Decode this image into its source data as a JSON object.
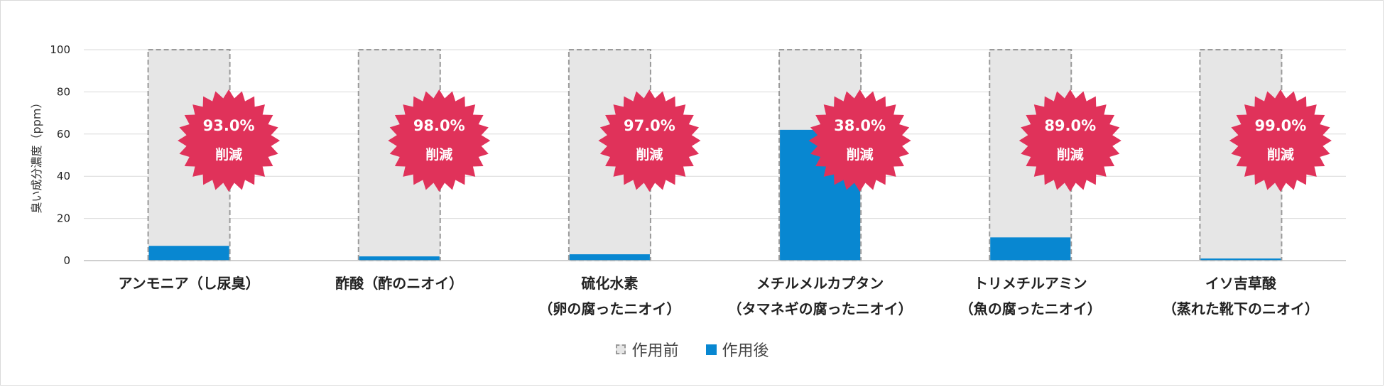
{
  "chart_data": {
    "type": "bar",
    "ylabel": "臭い成分濃度（ppm）",
    "ylim": [
      0,
      100
    ],
    "yticks": [
      0,
      20,
      40,
      60,
      80,
      100
    ],
    "grid": true,
    "legend_position": "bottom",
    "categories": [
      {
        "line1": "アンモニア（し尿臭）",
        "line2": ""
      },
      {
        "line1": "酢酸（酢のニオイ）",
        "line2": ""
      },
      {
        "line1": "硫化水素",
        "line2": "（卵の腐ったニオイ）"
      },
      {
        "line1": "メチルメルカプタン",
        "line2": "（タマネギの腐ったニオイ）"
      },
      {
        "line1": "トリメチルアミン",
        "line2": "（魚の腐ったニオイ）"
      },
      {
        "line1": "イソ吉草酸",
        "line2": "（蒸れた靴下のニオイ）"
      }
    ],
    "series": [
      {
        "name": "作用前",
        "values": [
          100,
          100,
          100,
          100,
          100,
          100
        ],
        "color": "#e6e6e6",
        "border": "#9a9a9a"
      },
      {
        "name": "作用後",
        "values": [
          7,
          2,
          3,
          62,
          11,
          1
        ],
        "color": "#0887d1"
      }
    ],
    "annotations": [
      {
        "percent": "93.0%",
        "word": "削減"
      },
      {
        "percent": "98.0%",
        "word": "削減"
      },
      {
        "percent": "97.0%",
        "word": "削減"
      },
      {
        "percent": "38.0%",
        "word": "削減"
      },
      {
        "percent": "89.0%",
        "word": "削減"
      },
      {
        "percent": "99.0%",
        "word": "削減"
      }
    ],
    "badge_color": "#e0325a"
  }
}
